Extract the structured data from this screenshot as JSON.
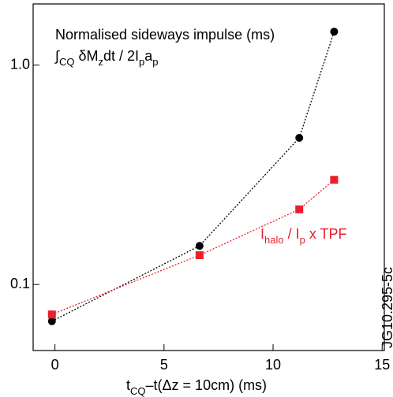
{
  "chart_data": {
    "type": "line",
    "log_y": true,
    "xlim": [
      -1,
      15.1
    ],
    "ylim": [
      0.05,
      1.9
    ],
    "xticks": [
      0,
      5,
      10,
      15
    ],
    "yticks": [
      0.1,
      {
        "value": 1,
        "label": "1.0"
      }
    ],
    "x_label_parts": [
      {
        "text": "t"
      },
      {
        "text": "CQ",
        "sub": true
      },
      {
        "text": "–t(Δz = 10cm) (ms)"
      }
    ],
    "watermark": "JG10.295-5c",
    "series": [
      {
        "color": "#000000",
        "marker": "circle",
        "name_parts": [
          {
            "text": "Normalised sideways impulse (ms)",
            "line": 0
          },
          {
            "text": "∫",
            "line": 1
          },
          {
            "text": "CQ",
            "sub": true,
            "line": 1
          },
          {
            "text": " δM",
            "line": 1
          },
          {
            "text": "z",
            "sub": true,
            "line": 1
          },
          {
            "text": "dt / 2I",
            "line": 1
          },
          {
            "text": "p",
            "sub": true,
            "line": 1
          },
          {
            "text": "a",
            "line": 1
          },
          {
            "text": "p",
            "sub": true,
            "line": 1
          }
        ],
        "x": [
          -0.14,
          6.63,
          11.2,
          12.8
        ],
        "values": [
          0.068,
          0.15,
          0.466,
          1.42
        ]
      },
      {
        "color": "#e8202a",
        "marker": "square",
        "name_parts": [
          {
            "text": "I"
          },
          {
            "text": "halo",
            "sub": true
          },
          {
            "text": " / I"
          },
          {
            "text": "p",
            "sub": true
          },
          {
            "text": " x TPF"
          }
        ],
        "x": [
          -0.14,
          6.63,
          11.2,
          12.8
        ],
        "values": [
          0.073,
          0.136,
          0.22,
          0.3
        ]
      }
    ]
  }
}
